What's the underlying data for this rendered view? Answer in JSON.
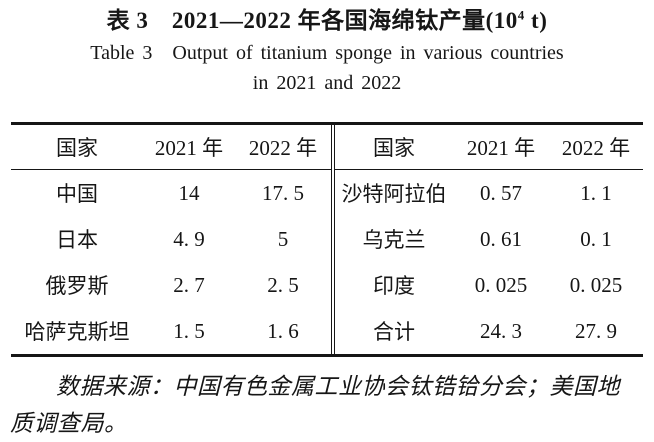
{
  "caption": {
    "zh_prefix": "表 3　2021—2022 年各国海绵钛产量(10",
    "zh_sup": "4",
    "zh_suffix": " t)",
    "en_line1": "Table 3　Output of titanium sponge in various countries",
    "en_line2": "in 2021 and 2022"
  },
  "table": {
    "left": {
      "headers": {
        "country": "国家",
        "y2021": "2021 年",
        "y2022": "2022 年"
      },
      "rows": [
        {
          "country": "中国",
          "y2021": "14",
          "y2022": "17. 5"
        },
        {
          "country": "日本",
          "y2021": "4. 9",
          "y2022": "5"
        },
        {
          "country": "俄罗斯",
          "y2021": "2. 7",
          "y2022": "2. 5"
        },
        {
          "country": "哈萨克斯坦",
          "y2021": "1. 5",
          "y2022": "1. 6"
        }
      ]
    },
    "right": {
      "headers": {
        "country": "国家",
        "y2021": "2021 年",
        "y2022": "2022 年"
      },
      "rows": [
        {
          "country": "沙特阿拉伯",
          "y2021": "0. 57",
          "y2022": "1. 1"
        },
        {
          "country": "乌克兰",
          "y2021": "0. 61",
          "y2022": "0. 1"
        },
        {
          "country": "印度",
          "y2021": "0. 025",
          "y2022": "0. 025"
        },
        {
          "country": "合计",
          "y2021": "24. 3",
          "y2022": "27. 9"
        }
      ]
    }
  },
  "footnote": {
    "lines": [
      "数据来源：中国有色金属工业协会钛锆铪分会；美国地",
      "质调查局。"
    ]
  }
}
